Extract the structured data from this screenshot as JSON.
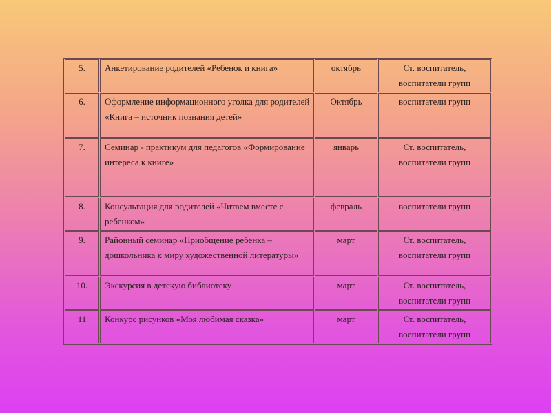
{
  "table": {
    "rows": [
      [
        "5.",
        "Анкетирование родителей «Ребенок и книга»",
        "октябрь",
        "Ст. воспитатель, воспитатели групп"
      ],
      [
        "6.",
        "Оформление информационного уголка для родителей «Книга – источник познания детей»",
        "Октябрь",
        "воспитатели групп"
      ],
      [
        "7.",
        "Семинар - практикум для педагогов «Формирование интереса к книге»",
        "январь",
        "Ст. воспитатель, воспитатели групп"
      ],
      [
        "8.",
        "Консультация для родителей «Читаем вместе с ребенком»",
        "февраль",
        "воспитатели групп"
      ],
      [
        "9.",
        "Районный семинар «Приобщение ребенка – дошкольника к миру художественной литературы»",
        "март",
        "Ст. воспитатель, воспитатели групп"
      ],
      [
        "10.",
        "Экскурсия в детскую библиотеку",
        "март",
        "Ст. воспитатель, воспитатели групп"
      ],
      [
        "11",
        "Конкурс рисунков «Моя любимая сказка»",
        "март",
        "Ст. воспитатель, воспитатели групп"
      ]
    ]
  }
}
